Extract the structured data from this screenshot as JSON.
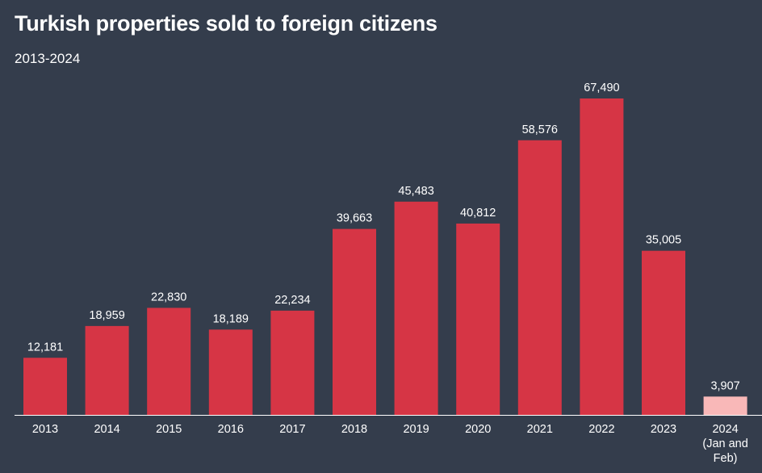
{
  "header": {
    "title": "Turkish properties sold to foreign citizens",
    "subtitle": "2013-2024"
  },
  "chart_data": {
    "type": "bar",
    "title": "Turkish properties sold to foreign citizens",
    "subtitle": "2013-2024",
    "xlabel": "",
    "ylabel": "",
    "categories": [
      "2013",
      "2014",
      "2015",
      "2016",
      "2017",
      "2018",
      "2019",
      "2020",
      "2021",
      "2022",
      "2023",
      "2024 (Jan and Feb)"
    ],
    "category_label_lines": [
      [
        "2013"
      ],
      [
        "2014"
      ],
      [
        "2015"
      ],
      [
        "2016"
      ],
      [
        "2017"
      ],
      [
        "2018"
      ],
      [
        "2019"
      ],
      [
        "2020"
      ],
      [
        "2021"
      ],
      [
        "2022"
      ],
      [
        "2023"
      ],
      [
        "2024",
        "(Jan and",
        "Feb)"
      ]
    ],
    "values": [
      12181,
      18959,
      22830,
      18189,
      22234,
      39663,
      45483,
      40812,
      58576,
      67490,
      35005,
      3907
    ],
    "value_labels": [
      "12,181",
      "18,959",
      "22,830",
      "18,189",
      "22,234",
      "39,663",
      "45,483",
      "40,812",
      "58,576",
      "67,490",
      "35,005",
      "3,907"
    ],
    "ylim": [
      0,
      67490
    ],
    "grid": false,
    "legend": "none",
    "colors": {
      "bar": "#d63545",
      "bar_partial": "#f9b8b8",
      "background": "#343d4c",
      "axis": "#ffffff",
      "text": "#ffffff"
    },
    "partial_year_index": 11
  }
}
